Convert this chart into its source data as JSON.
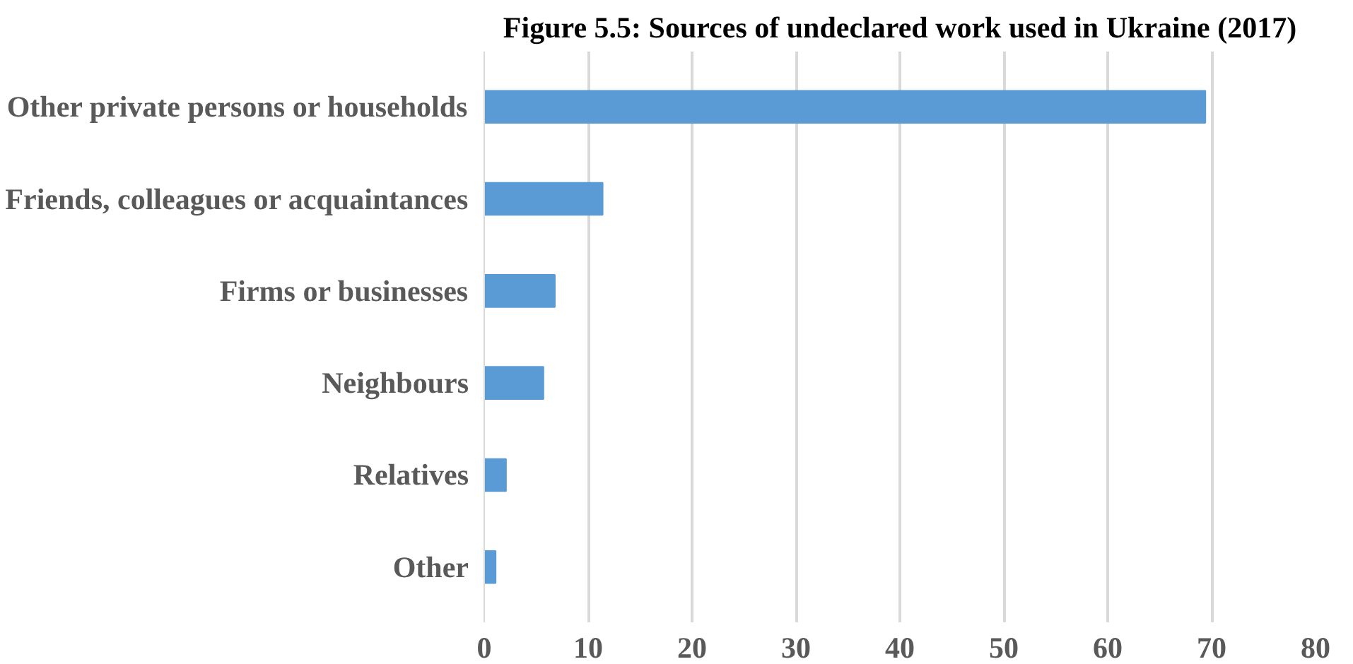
{
  "chart_data": {
    "type": "bar",
    "orientation": "horizontal",
    "title": "Figure 5.5: Sources of undeclared work used in Ukraine (2017)",
    "categories": [
      "Other private persons or households",
      "Friends, colleagues or acquaintances",
      "Firms or businesses",
      "Neighbours",
      "Relatives",
      "Other"
    ],
    "values": [
      69.4,
      11.4,
      6.8,
      5.7,
      2.1,
      1.1
    ],
    "color": "#5b9bd5",
    "xlim": [
      0,
      80
    ],
    "xticks": [
      0,
      10,
      20,
      30,
      40,
      50,
      60,
      70,
      80
    ],
    "grid": "x"
  }
}
